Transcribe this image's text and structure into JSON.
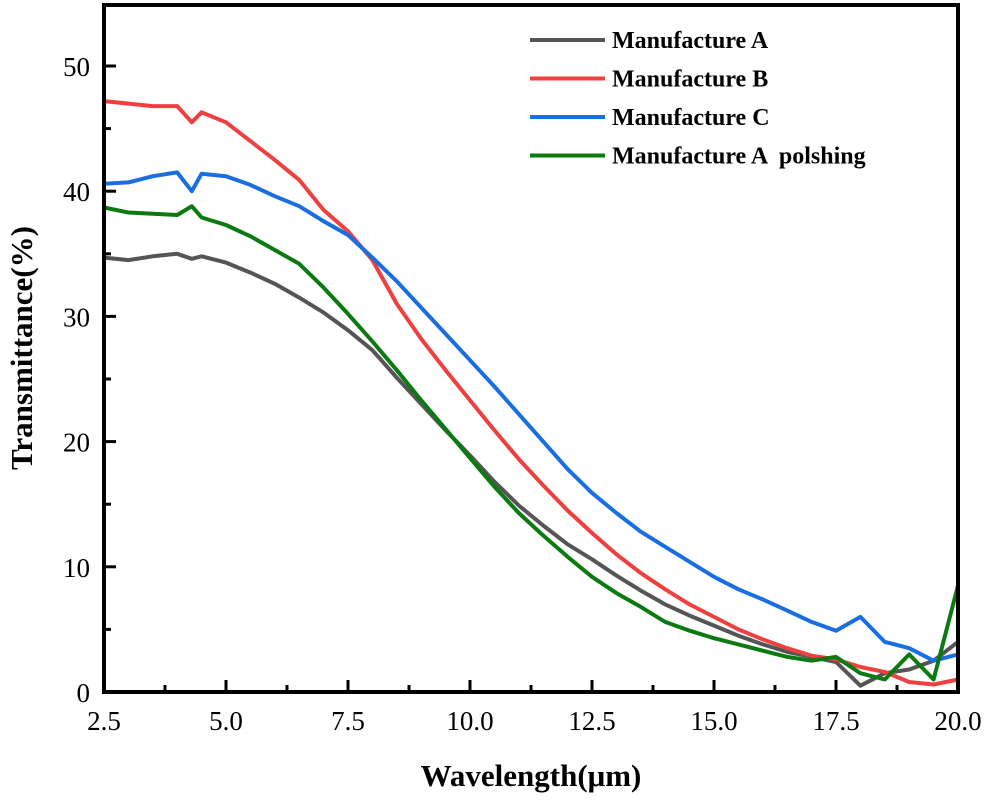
{
  "chart_data": {
    "type": "line",
    "title": "",
    "xlabel": "Wavelength(μm)",
    "ylabel": "Transmittance(%)",
    "xlim": [
      2.5,
      20.0
    ],
    "ylim": [
      0,
      55
    ],
    "x_ticks": [
      "2.5",
      "5.0",
      "7.5",
      "10.0",
      "12.5",
      "15.0",
      "17.5",
      "20.0"
    ],
    "y_ticks": [
      "0",
      "10",
      "20",
      "30",
      "40",
      "50"
    ],
    "grid": false,
    "legend_position": "top-right",
    "x": [
      2.5,
      3,
      3.5,
      4,
      4.3,
      4.5,
      5,
      5.5,
      6,
      6.5,
      7,
      7.5,
      8,
      8.5,
      9,
      9.5,
      10,
      10.5,
      11,
      11.5,
      12,
      12.5,
      13,
      13.5,
      14,
      14.5,
      15,
      15.5,
      16,
      16.5,
      17,
      17.5,
      18,
      18.5,
      19,
      19.5,
      20
    ],
    "series": [
      {
        "name": "Manufacture A",
        "color": "#555555",
        "values": [
          34.7,
          34.5,
          34.8,
          35,
          34.6,
          34.8,
          34.3,
          33.5,
          32.6,
          31.5,
          30.3,
          28.9,
          27.3,
          25.1,
          23,
          20.9,
          18.9,
          16.8,
          14.9,
          13.3,
          11.8,
          10.6,
          9.3,
          8.1,
          7,
          6.1,
          5.3,
          4.5,
          3.8,
          3.2,
          2.8,
          2.4,
          0.5,
          1.5,
          1.8,
          2.5,
          4
        ]
      },
      {
        "name": "Manufacture B",
        "color": "#ef4040",
        "values": [
          47.2,
          47,
          46.8,
          46.8,
          45.5,
          46.3,
          45.5,
          44,
          42.5,
          40.9,
          38.5,
          36.8,
          34.5,
          31,
          28.2,
          25.7,
          23.3,
          20.9,
          18.6,
          16.5,
          14.5,
          12.7,
          11,
          9.5,
          8.2,
          7,
          6,
          5,
          4.2,
          3.5,
          2.9,
          2.6,
          2,
          1.6,
          0.8,
          0.6,
          1
        ]
      },
      {
        "name": "Manufacture C",
        "color": "#1a6fe0",
        "values": [
          40.6,
          40.7,
          41.2,
          41.5,
          40,
          41.4,
          41.2,
          40.5,
          39.6,
          38.8,
          37.6,
          36.5,
          34.7,
          32.8,
          30.7,
          28.6,
          26.5,
          24.4,
          22.2,
          20,
          17.8,
          15.9,
          14.3,
          12.8,
          11.6,
          10.4,
          9.2,
          8.2,
          7.4,
          6.5,
          5.6,
          4.9,
          6,
          4,
          3.5,
          2.5,
          3
        ]
      },
      {
        "name": "Manufacture A  polshing",
        "color": "#0b7a10",
        "values": [
          38.7,
          38.3,
          38.2,
          38.1,
          38.8,
          37.9,
          37.3,
          36.4,
          35.3,
          34.2,
          32.3,
          30.2,
          28,
          25.7,
          23.3,
          21,
          18.7,
          16.4,
          14.3,
          12.5,
          10.8,
          9.2,
          7.9,
          6.8,
          5.6,
          4.9,
          4.3,
          3.8,
          3.3,
          2.8,
          2.5,
          2.8,
          1.5,
          1,
          3,
          1,
          8.5
        ]
      }
    ]
  }
}
